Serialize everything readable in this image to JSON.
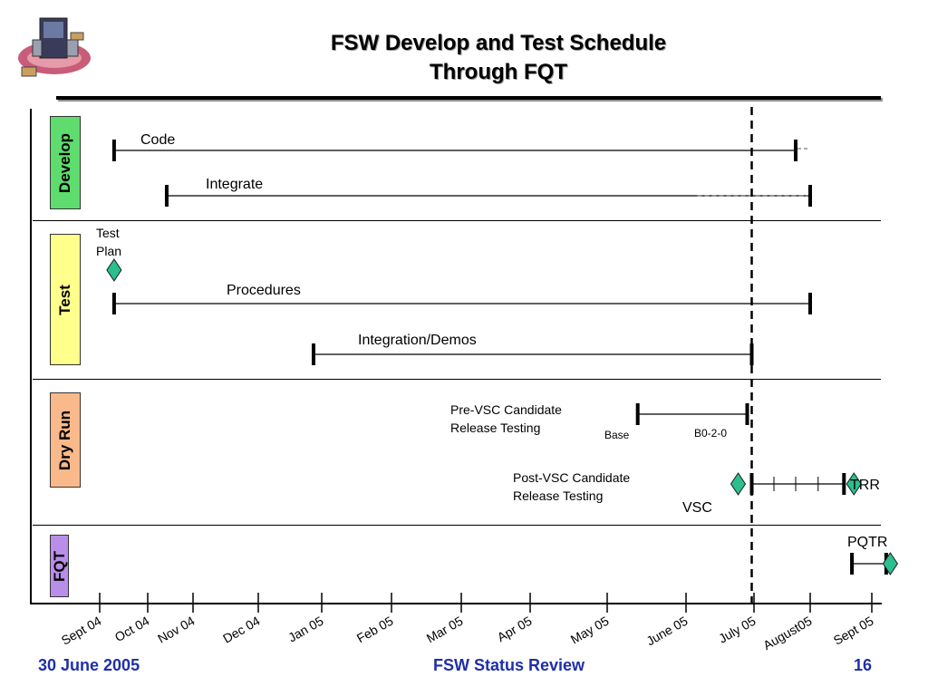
{
  "slide": {
    "title_line1": "FSW Develop and Test Schedule",
    "title_line2": "Through FQT"
  },
  "sections": [
    {
      "label": "Develop",
      "color": "#5fdc6e"
    },
    {
      "label": "Test",
      "color": "#ffff8c"
    },
    {
      "label": "Dry Run",
      "color": "#f9b98a"
    },
    {
      "label": "FQT",
      "color": "#b98ee8"
    }
  ],
  "footer": {
    "date": "30 June 2005",
    "center": "FSW Status Review",
    "page": "16"
  },
  "chart_data": {
    "type": "gantt",
    "x_ticks": [
      "Sept 04",
      "Oct 04",
      "Nov 04",
      "Dec 04",
      "Jan 05",
      "Feb 05",
      "Mar 05",
      "Apr 05",
      "May 05",
      "June 05",
      "July 05",
      "August05",
      "Sept 05"
    ],
    "status_line_date": "2005-06-30",
    "tasks": [
      {
        "name": "Code",
        "section": "Develop",
        "start": "2004-09-10",
        "end": "2005-07-24",
        "extension_end": "2005-08-01"
      },
      {
        "name": "Integrate",
        "section": "Develop",
        "start": "2004-10-14",
        "end": "2005-08-01",
        "extension_start": "2005-06-06"
      },
      {
        "name": "Procedures",
        "section": "Test",
        "start": "2004-09-10",
        "end": "2005-08-01"
      },
      {
        "name": "Integration/Demos",
        "section": "Test",
        "start": "2004-12-28",
        "end": "2005-06-30"
      },
      {
        "name": "Pre-VSC Candidate Release Testing",
        "section": "Dry Run",
        "start": "2005-05-13",
        "end": "2005-06-28",
        "start_label": "Base",
        "end_label": "B0-2-0"
      },
      {
        "name": "Post-VSC Candidate Release Testing",
        "section": "Dry Run",
        "start": "2005-06-30",
        "end": "2005-08-18",
        "interim_ticks": [
          "2005-07-12",
          "2005-07-24",
          "2005-08-05"
        ]
      },
      {
        "name": "FQT",
        "section": "FQT",
        "start": "2005-08-22",
        "end": "2005-09-08"
      }
    ],
    "milestones": [
      {
        "name": "Test Plan",
        "section": "Test",
        "date": "2004-09-10"
      },
      {
        "name": "VSC",
        "section": "Dry Run",
        "date": "2005-06-24"
      },
      {
        "name": "TRR",
        "section": "Dry Run",
        "date": "2005-08-23"
      },
      {
        "name": "PQTR",
        "section": "FQT",
        "date": "2005-09-10"
      }
    ],
    "colors": {
      "milestone": "#2bbf8f",
      "bar": "#000000",
      "status_line": "#000000"
    }
  }
}
